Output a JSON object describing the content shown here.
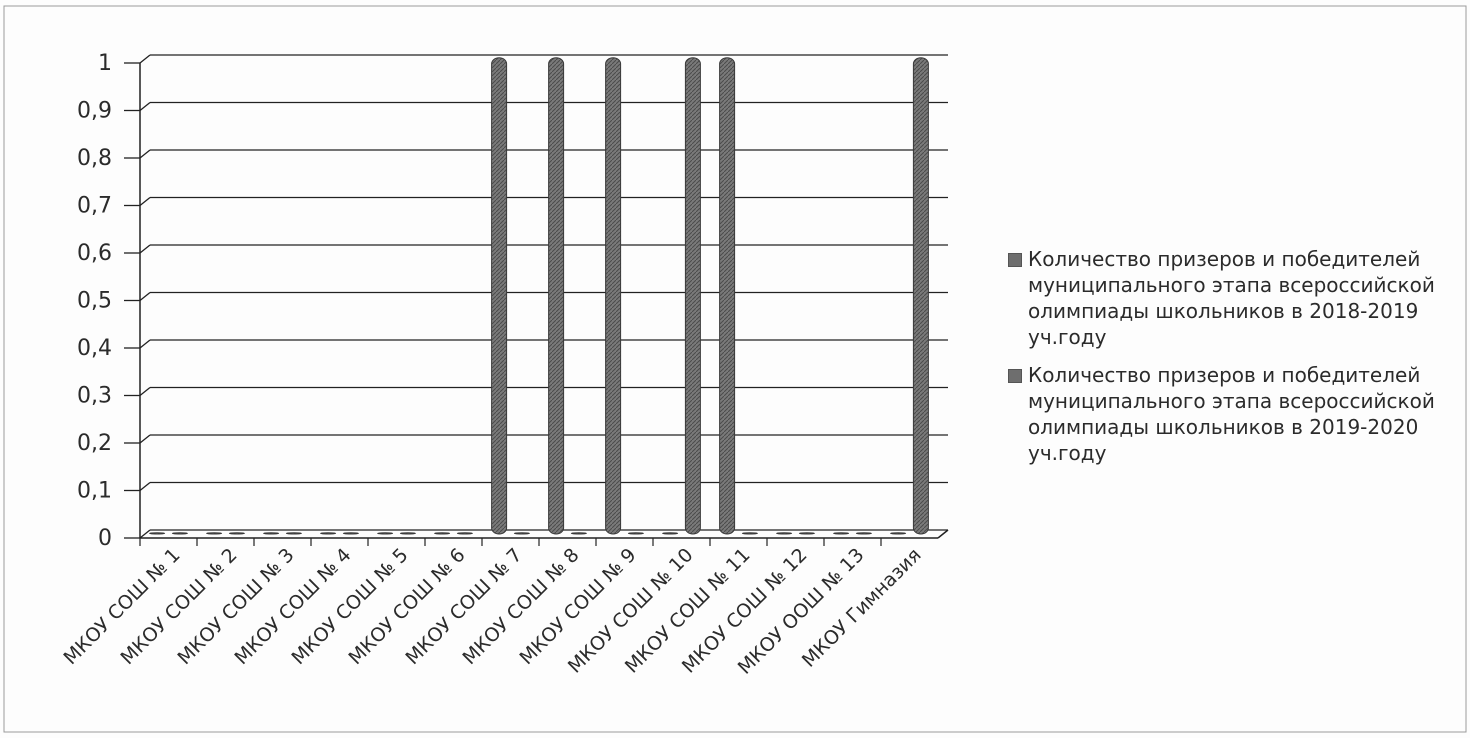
{
  "chart_data": {
    "type": "bar",
    "categories": [
      "МКОУ СОШ № 1",
      "МКОУ СОШ № 2",
      "МКОУ СОШ № 3",
      "МКОУ СОШ № 4",
      "МКОУ СОШ № 5",
      "МКОУ СОШ № 6",
      "МКОУ СОШ № 7",
      "МКОУ СОШ № 8",
      "МКОУ СОШ № 9",
      "МКОУ СОШ № 10",
      "МКОУ СОШ № 11",
      "МКОУ СОШ № 12",
      "МКОУ ООШ № 13",
      "МКОУ Гимназия"
    ],
    "series": [
      {
        "name": "Количество призеров и победителей муниципального этапа всероссийской олимпиады школьников  в 2018-2019 уч.году",
        "values": [
          0,
          0,
          0,
          0,
          0,
          0,
          1,
          1,
          1,
          0,
          1,
          0,
          0,
          0
        ]
      },
      {
        "name": "Количество призеров и победителей муниципального  этапа всероссийской олимпиады школьников  в 2019-2020 уч.году",
        "values": [
          0,
          0,
          0,
          0,
          0,
          0,
          0,
          0,
          0,
          1,
          0,
          0,
          0,
          1
        ]
      }
    ],
    "y_ticks": [
      "0",
      "0,1",
      "0,2",
      "0,3",
      "0,4",
      "0,5",
      "0,6",
      "0,7",
      "0,8",
      "0,9",
      "1"
    ],
    "ylim": [
      0,
      1
    ],
    "grid": true,
    "legend_position": "right",
    "colors": {
      "bar": "#6e6e6e",
      "grid": "#222222",
      "text": "#2b2b2b"
    }
  }
}
